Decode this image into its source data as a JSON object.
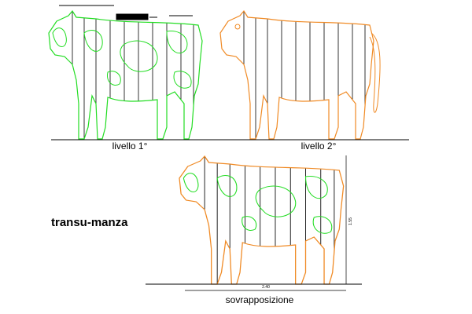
{
  "labels": {
    "level1": "livello 1°",
    "level2": "livello 2°",
    "title": "transu-manza",
    "overlap": "sovrapposizione",
    "width": "2.40",
    "height": "1.55"
  }
}
